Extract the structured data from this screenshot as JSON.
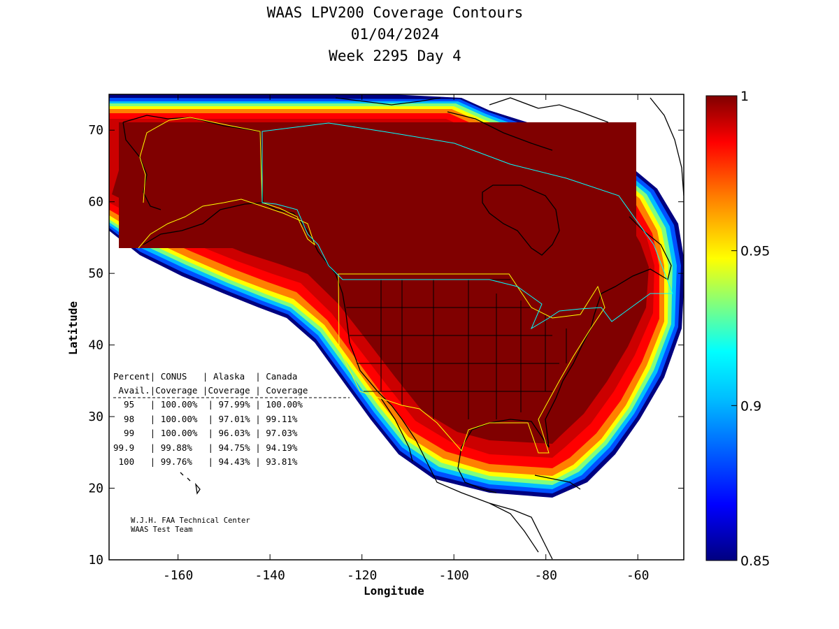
{
  "title": {
    "line1": "WAAS LPV200 Coverage Contours",
    "line2": "01/04/2024",
    "line3": "Week 2295 Day 4"
  },
  "axes": {
    "xlabel": "Longitude",
    "ylabel": "Latitude",
    "xlim": [
      -175,
      -50
    ],
    "ylim": [
      10,
      75
    ],
    "xticks": [
      -160,
      -140,
      -120,
      -100,
      -80,
      -60
    ],
    "yticks": [
      10,
      20,
      30,
      40,
      50,
      60,
      70
    ]
  },
  "colorbar": {
    "range": [
      0.85,
      1
    ],
    "ticks": [
      "1",
      "0.95",
      "0.9",
      "0.85"
    ],
    "colors": [
      "#000080",
      "#0000ff",
      "#00bfff",
      "#00ffff",
      "#7fff7f",
      "#ffff00",
      "#ff8000",
      "#ff0000",
      "#800000"
    ]
  },
  "table": {
    "header1": "Percent| CONUS   | Alaska  | Canada",
    "header2": " Avail.|Coverage |Coverage | Coverage",
    "rows": [
      "  95   | 100.00%  | 97.99% | 100.00%",
      "  98   | 100.00%  | 97.01% | 99.11%",
      "  99   | 100.00%  | 96.03% | 97.03%",
      "99.9   | 99.88%   | 94.75% | 94.19%",
      " 100   | 99.76%   | 94.43% | 93.81%"
    ]
  },
  "credit": {
    "line1": "W.J.H. FAA Technical Center",
    "line2": "WAAS Test Team"
  },
  "chart_data": {
    "type": "heatmap",
    "title": "WAAS LPV200 Coverage Contours",
    "xlabel": "Longitude",
    "ylabel": "Latitude",
    "xlim": [
      -175,
      -50
    ],
    "ylim": [
      10,
      75
    ],
    "colorbar_range": [
      0.85,
      1
    ],
    "coverage_table": {
      "columns": [
        "Percent Avail.",
        "CONUS Coverage",
        "Alaska Coverage",
        "Canada Coverage"
      ],
      "rows": [
        [
          "95",
          "100.00%",
          "97.99%",
          "100.00%"
        ],
        [
          "98",
          "100.00%",
          "97.01%",
          "99.11%"
        ],
        [
          "99",
          "100.00%",
          "96.03%",
          "97.03%"
        ],
        [
          "99.9",
          "99.88%",
          "94.75%",
          "94.19%"
        ],
        [
          "100",
          "99.76%",
          "94.43%",
          "93.81%"
        ]
      ]
    }
  }
}
